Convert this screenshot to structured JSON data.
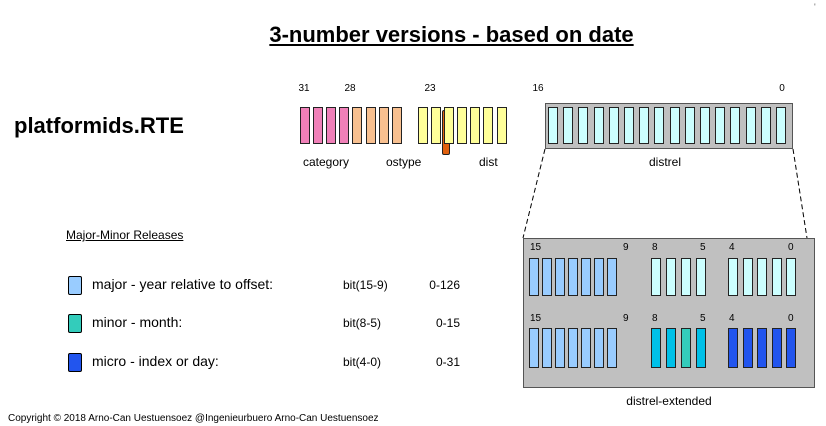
{
  "title": "3-number versions - based on date",
  "corner_tick": "'",
  "register": {
    "label": "platformids.RTE",
    "bit_numbers": [
      "31",
      "28",
      "23",
      "16",
      "0"
    ],
    "fields": [
      "category",
      "ostype",
      "dist",
      "distrel"
    ],
    "colors": {
      "category": "#f080b8",
      "ostype": "#f8c090",
      "ostype_marker": "#e0600e",
      "dist": "#ffff99",
      "distrel": "#ccffff"
    }
  },
  "extended": {
    "label": "distrel-extended",
    "row1_numbers": [
      "15",
      "9",
      "8",
      "5",
      "4",
      "0"
    ],
    "row2_numbers": [
      "15",
      "9",
      "8",
      "5",
      "4",
      "0"
    ],
    "colors": {
      "major": "#99ccff",
      "minor_a": "#00c0e8",
      "minor_b": "#33ccbb",
      "micro": "#2255ee",
      "unset": "#ccffff"
    }
  },
  "legend": {
    "title": "Major-Minor Releases",
    "items": [
      {
        "desc": "major - year relative to offset:",
        "bits": "bit(15-9)",
        "range": "0-126",
        "color": "#99ccff"
      },
      {
        "desc": "minor - month:",
        "bits": "bit(8-5)",
        "range": "0-15",
        "color": "#33ccbb"
      },
      {
        "desc": "micro  - index or day:",
        "bits": "bit(4-0)",
        "range": "0-31",
        "color": "#2255ee"
      }
    ]
  },
  "copyright": "Copyright © 2018 Arno-Can Uestuensoez @Ingenieurbuero Arno-Can Uestuensoez"
}
